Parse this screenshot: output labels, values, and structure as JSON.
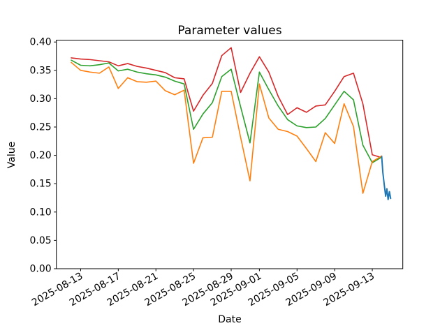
{
  "figure": {
    "title": "Parameter values",
    "xlabel": "Date",
    "ylabel": "Value"
  },
  "chart_data": {
    "type": "line",
    "title": "Parameter values",
    "xlabel": "Date",
    "ylabel": "Value",
    "grid": false,
    "legend": "none",
    "ylim": [
      0.0,
      0.403
    ],
    "y_tick_labels": [
      "0.00",
      "0.05",
      "0.10",
      "0.15",
      "0.20",
      "0.25",
      "0.30",
      "0.35",
      "0.40"
    ],
    "x_tick_labels": [
      "2025-08-13",
      "2025-08-17",
      "2025-08-21",
      "2025-08-25",
      "2025-08-29",
      "2025-09-01",
      "2025-09-05",
      "2025-09-09",
      "2025-09-13"
    ],
    "dates": [
      "2025-08-12",
      "2025-08-13",
      "2025-08-14",
      "2025-08-15",
      "2025-08-16",
      "2025-08-17",
      "2025-08-18",
      "2025-08-19",
      "2025-08-20",
      "2025-08-21",
      "2025-08-22",
      "2025-08-23",
      "2025-08-24",
      "2025-08-25",
      "2025-08-26",
      "2025-08-27",
      "2025-08-28",
      "2025-08-29",
      "2025-08-30",
      "2025-08-31",
      "2025-09-01",
      "2025-09-02",
      "2025-09-03",
      "2025-09-04",
      "2025-09-05",
      "2025-09-06",
      "2025-09-07",
      "2025-09-08",
      "2025-09-09",
      "2025-09-10",
      "2025-09-11",
      "2025-09-12",
      "2025-09-13",
      "2025-09-14"
    ],
    "series": [
      {
        "name": "red",
        "color": "#d62728",
        "values": [
          0.372,
          0.37,
          0.369,
          0.367,
          0.365,
          0.358,
          0.362,
          0.357,
          0.354,
          0.35,
          0.346,
          0.337,
          0.335,
          0.278,
          0.306,
          0.327,
          0.376,
          0.39,
          0.311,
          0.345,
          0.374,
          0.347,
          0.304,
          0.272,
          0.284,
          0.276,
          0.287,
          0.289,
          0.313,
          0.339,
          0.345,
          0.291,
          0.201,
          0.196
        ]
      },
      {
        "name": "green",
        "color": "#2ca02c",
        "values": [
          0.368,
          0.359,
          0.358,
          0.36,
          0.363,
          0.349,
          0.352,
          0.347,
          0.344,
          0.342,
          0.338,
          0.331,
          0.326,
          0.246,
          0.273,
          0.293,
          0.339,
          0.352,
          0.286,
          0.222,
          0.347,
          0.316,
          0.287,
          0.263,
          0.252,
          0.249,
          0.25,
          0.265,
          0.289,
          0.313,
          0.298,
          0.218,
          0.187,
          0.197
        ]
      },
      {
        "name": "orange",
        "color": "#ff7f0e",
        "values": [
          0.364,
          0.35,
          0.347,
          0.345,
          0.356,
          0.318,
          0.337,
          0.33,
          0.329,
          0.331,
          0.314,
          0.307,
          0.315,
          0.186,
          0.231,
          0.232,
          0.313,
          0.313,
          0.232,
          0.155,
          0.326,
          0.266,
          0.246,
          0.242,
          0.234,
          0.212,
          0.189,
          0.24,
          0.221,
          0.291,
          0.251,
          0.133,
          0.189,
          0.199
        ]
      },
      {
        "name": "blue",
        "color": "#1f77b4",
        "x_days_from_start": [
          33,
          33.12,
          33.28,
          33.42,
          33.55,
          33.68,
          33.82,
          33.95
        ],
        "values": [
          0.198,
          0.17,
          0.147,
          0.128,
          0.141,
          0.122,
          0.136,
          0.124
        ]
      }
    ]
  }
}
